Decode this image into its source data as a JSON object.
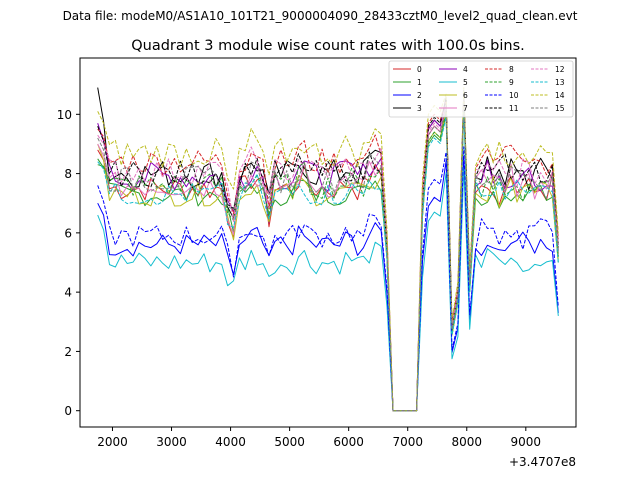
{
  "chart_data": {
    "type": "line",
    "suptitle": "Data file: modeM0/AS1A10_101T21_9000004090_28433cztM0_level2_quad_clean.evt",
    "title": "Quadrant 3 module wise count rates with 100.0s bins.",
    "xlabel": "",
    "ylabel": "",
    "x_offset_label": "+3.4707e8",
    "xlim": [
      1450,
      9850
    ],
    "ylim": [
      -0.55,
      11.9
    ],
    "x_ticks": [
      2000,
      3000,
      4000,
      5000,
      6000,
      7000,
      8000,
      9000
    ],
    "y_ticks": [
      0,
      2,
      4,
      6,
      8,
      10
    ],
    "grid": false,
    "legend_position": "top-right",
    "legend_columns": 4,
    "x_start": 1750,
    "x_step": 100,
    "gap_start": 6750,
    "gap_end": 7150,
    "series": [
      {
        "name": "0",
        "color": "#d62728",
        "dash": "solid",
        "base": 7.5,
        "noise": 0.45,
        "early": 8.8,
        "peak1": 9.6,
        "peak2": 10.4,
        "end": 5.2
      },
      {
        "name": "1",
        "color": "#2ca02c",
        "dash": "solid",
        "base": 7.3,
        "noise": 0.4,
        "early": 8.5,
        "peak1": 9.3,
        "peak2": 10.2,
        "end": 5.0
      },
      {
        "name": "2",
        "color": "#0000ff",
        "dash": "solid",
        "base": 5.6,
        "noise": 0.4,
        "early": 7.0,
        "peak1": 7.2,
        "peak2": 8.6,
        "end": 3.3
      },
      {
        "name": "3",
        "color": "#000000",
        "dash": "solid",
        "base": 8.0,
        "noise": 0.5,
        "early": 10.9,
        "peak1": 9.8,
        "peak2": 10.8,
        "end": 5.6
      },
      {
        "name": "4",
        "color": "#8b00b8",
        "dash": "solid",
        "base": 7.9,
        "noise": 0.5,
        "early": 9.7,
        "peak1": 9.8,
        "peak2": 10.6,
        "end": 5.4
      },
      {
        "name": "5",
        "color": "#17becf",
        "dash": "solid",
        "base": 5.0,
        "noise": 0.4,
        "early": 6.6,
        "peak1": 6.7,
        "peak2": 8.2,
        "end": 3.2
      },
      {
        "name": "6",
        "color": "#bcbd22",
        "dash": "solid",
        "base": 7.3,
        "noise": 0.4,
        "early": 9.0,
        "peak1": 9.4,
        "peak2": 10.3,
        "end": 5.1
      },
      {
        "name": "7",
        "color": "#e377c2",
        "dash": "solid",
        "base": 7.6,
        "noise": 0.45,
        "early": 9.0,
        "peak1": 9.6,
        "peak2": 10.5,
        "end": 5.3
      },
      {
        "name": "8",
        "color": "#d62728",
        "dash": "dashed",
        "base": 8.4,
        "noise": 0.45,
        "early": 9.5,
        "peak1": 10.0,
        "peak2": 10.7,
        "end": 5.8
      },
      {
        "name": "9",
        "color": "#2ca02c",
        "dash": "dashed",
        "base": 7.6,
        "noise": 0.45,
        "early": 8.3,
        "peak1": 9.4,
        "peak2": 10.3,
        "end": 5.2
      },
      {
        "name": "10",
        "color": "#0000ff",
        "dash": "dashed",
        "base": 5.9,
        "noise": 0.4,
        "early": 7.6,
        "peak1": 7.8,
        "peak2": 8.9,
        "end": 3.5
      },
      {
        "name": "11",
        "color": "#000000",
        "dash": "dashed",
        "base": 8.0,
        "noise": 0.45,
        "early": 9.6,
        "peak1": 9.9,
        "peak2": 10.7,
        "end": 5.5
      },
      {
        "name": "12",
        "color": "#e377c2",
        "dash": "dashed",
        "base": 8.1,
        "noise": 0.45,
        "early": 9.3,
        "peak1": 9.7,
        "peak2": 10.6,
        "end": 5.6
      },
      {
        "name": "13",
        "color": "#17becf",
        "dash": "dashed",
        "base": 7.3,
        "noise": 0.4,
        "early": 8.4,
        "peak1": 9.2,
        "peak2": 10.1,
        "end": 5.0
      },
      {
        "name": "14",
        "color": "#bcbd22",
        "dash": "dashed",
        "base": 8.7,
        "noise": 0.5,
        "early": 10.1,
        "peak1": 10.3,
        "peak2": 10.9,
        "end": 6.0
      },
      {
        "name": "15",
        "color": "#7f7f7f",
        "dash": "dashed",
        "base": 7.8,
        "noise": 0.45,
        "early": 9.2,
        "peak1": 9.6,
        "peak2": 10.5,
        "end": 5.4
      }
    ]
  }
}
